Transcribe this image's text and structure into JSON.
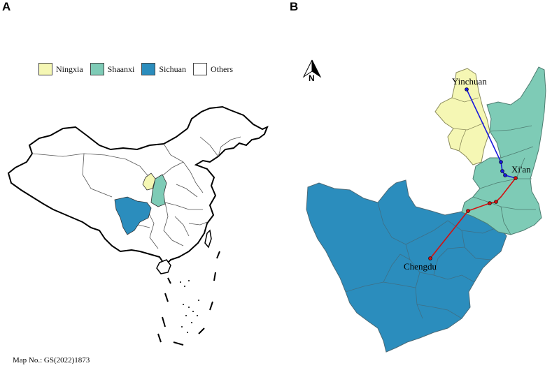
{
  "panel_labels": {
    "a": "A",
    "b": "B"
  },
  "legend": [
    {
      "label": "Ningxia",
      "color": "#f5f7b4"
    },
    {
      "label": "Shaanxi",
      "color": "#7ecbb6"
    },
    {
      "label": "Sichuan",
      "color": "#2b8dbd"
    },
    {
      "label": "Others",
      "color": "#ffffff"
    }
  ],
  "map_number": "Map No.: GS(2022)1873",
  "north_arrow": {
    "label": "N"
  },
  "cities": {
    "yinchuan": "Yinchuan",
    "xian": "Xi'an",
    "chengdu": "Chengdu"
  },
  "route_colors": {
    "north_route": "#1a1adc",
    "south_route": "#d41010"
  }
}
